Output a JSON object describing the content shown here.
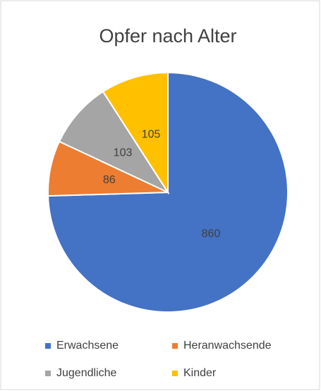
{
  "chart_data": {
    "type": "pie",
    "title": "Opfer nach Alter",
    "categories": [
      "Erwachsene",
      "Heranwachsende",
      "Jugendliche",
      "Kinder"
    ],
    "values": [
      860,
      86,
      103,
      105
    ],
    "colors": [
      "#4472c4",
      "#ed7d31",
      "#a5a5a5",
      "#ffc000"
    ],
    "legend": "bottom"
  }
}
